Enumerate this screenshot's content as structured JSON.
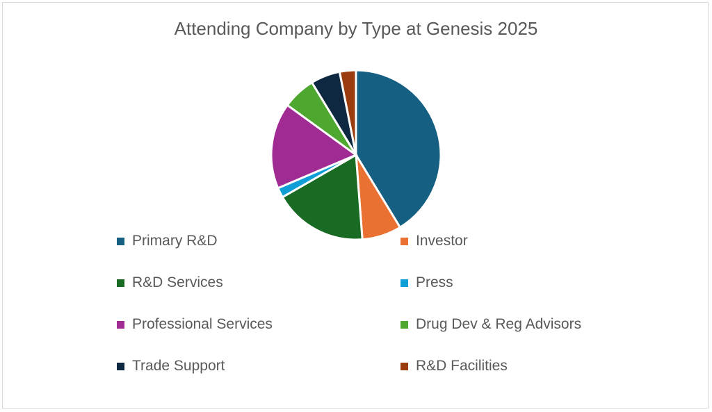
{
  "chart_data": {
    "type": "pie",
    "title": "Attending Company by Type at Genesis 2025",
    "categories": [
      "Primary R&D",
      "Investor",
      "R&D Services",
      "Press",
      "Professional Services",
      "Drug Dev & Reg Advisors",
      "Trade Support",
      "R&D Facilities"
    ],
    "values": [
      41.3,
      7.5,
      17.9,
      1.9,
      16.4,
      6.3,
      5.6,
      3.1
    ],
    "colors": [
      "#156082",
      "#E97132",
      "#196B24",
      "#0F9ED5",
      "#A02B93",
      "#4EA72E",
      "#0E2841",
      "#9B3C0E"
    ],
    "legend_position": "bottom"
  }
}
